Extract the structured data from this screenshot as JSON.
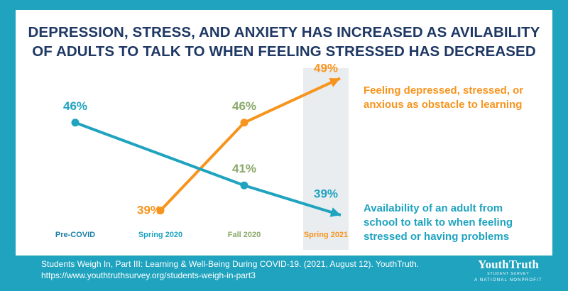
{
  "title_lines": [
    "DEPRESSION, STRESS, AND ANXIETY HAS INCREASED AS AVILABILITY",
    "OF ADULTS TO TALK TO WHEN FEELING STRESSED HAS DECREASED"
  ],
  "colors": {
    "background": "#1fa3bf",
    "title": "#1f3864",
    "orange": "#f7941d",
    "teal": "#1fa3bf",
    "green_label": "#8aa86a",
    "highlight": "#e9edf0",
    "precovid_label": "#1a7fa6"
  },
  "chart_data": {
    "type": "line",
    "categories": [
      "Pre-COVID",
      "Spring 2020",
      "Fall 2020",
      "Spring 2021"
    ],
    "highlighted_category": "Spring 2021",
    "series": [
      {
        "name": "Feeling depressed, stressed, or anxious as obstacle to learning",
        "values": [
          null,
          39,
          46,
          49
        ],
        "labels": [
          null,
          "39%",
          "46%",
          "49%"
        ],
        "color": "#f7941d"
      },
      {
        "name": "Availability of an adult from school to talk to when feeling stressed or having problems",
        "values": [
          46,
          null,
          41,
          39
        ],
        "labels": [
          "46%",
          null,
          "41%",
          "39%"
        ],
        "color": "#1fa3bf"
      }
    ],
    "ylim": [
      37,
      50
    ],
    "grid": false,
    "legend": "right",
    "xlabel": "",
    "ylabel": ""
  },
  "legend_lines": {
    "orange": [
      "Feeling depressed, stressed, or",
      "anxious as obstacle to learning"
    ],
    "teal": [
      "Availability of an adult from",
      "school to talk to when feeling",
      "stressed or having problems"
    ]
  },
  "footer_lines": [
    "Students Weigh In, Part III: Learning & Well-Being During COVID-19. (2021, August 12). YouthTruth.",
    "https://www.youthtruthsurvey.org/students-weigh-in-part3"
  ],
  "logo": {
    "name": "YouthTruth",
    "subtitle": "STUDENT SURVEY",
    "tagline": "A NATIONAL NONPROFIT"
  }
}
